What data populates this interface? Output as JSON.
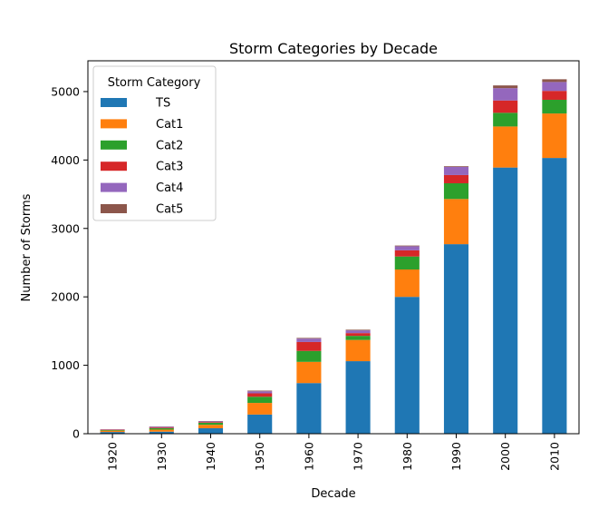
{
  "chart_data": {
    "type": "bar",
    "stacked": true,
    "title": "Storm Categories by Decade",
    "xlabel": "Decade",
    "ylabel": "Number of Storms",
    "ylim": [
      0,
      5450
    ],
    "yticks": [
      0,
      1000,
      2000,
      3000,
      4000,
      5000
    ],
    "grid": false,
    "legend_title": "Storm Category",
    "legend_position": "top-left",
    "categories": [
      "1920",
      "1930",
      "1940",
      "1950",
      "1960",
      "1970",
      "1980",
      "1990",
      "2000",
      "2010"
    ],
    "series": [
      {
        "name": "TS",
        "color": "#1f77b4",
        "values": [
          25,
          30,
          80,
          280,
          740,
          1060,
          2000,
          2770,
          3890,
          4030
        ]
      },
      {
        "name": "Cat1",
        "color": "#ff7f0e",
        "values": [
          20,
          30,
          50,
          170,
          310,
          310,
          400,
          660,
          600,
          650
        ]
      },
      {
        "name": "Cat2",
        "color": "#2ca02c",
        "values": [
          10,
          20,
          30,
          90,
          160,
          60,
          190,
          230,
          200,
          200
        ]
      },
      {
        "name": "Cat3",
        "color": "#d62728",
        "values": [
          5,
          10,
          10,
          50,
          130,
          40,
          90,
          120,
          180,
          130
        ]
      },
      {
        "name": "Cat4",
        "color": "#9467bd",
        "values": [
          5,
          10,
          10,
          30,
          50,
          40,
          60,
          120,
          180,
          130
        ]
      },
      {
        "name": "Cat5",
        "color": "#8c564b",
        "values": [
          0,
          5,
          5,
          10,
          10,
          10,
          10,
          10,
          40,
          40
        ]
      }
    ]
  }
}
